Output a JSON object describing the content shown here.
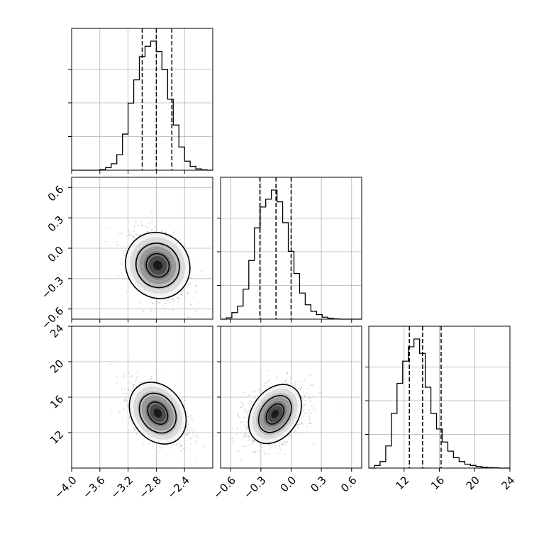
{
  "chart_data": {
    "type": "corner",
    "colors": {
      "line": "#000000",
      "grid": "#b0b0b0",
      "points": "#9a9a9a"
    },
    "parameters": [
      {
        "range": [
          -4.0,
          -2.0
        ],
        "ticks": [
          -4.0,
          -3.6,
          -3.2,
          -2.8,
          -2.4
        ],
        "tick_labels": [
          "−4.0",
          "−3.6",
          "−3.2",
          "−2.8",
          "−2.4"
        ],
        "quantiles": [
          -3.0,
          -2.8,
          -2.58
        ]
      },
      {
        "range": [
          -0.7,
          0.7
        ],
        "ticks": [
          -0.6,
          -0.3,
          0.0,
          0.3,
          0.6
        ],
        "tick_labels": [
          "−0.6",
          "−0.3",
          "0.0",
          "0.3",
          "0.6"
        ],
        "quantiles": [
          -0.31,
          -0.15,
          0.0
        ]
      },
      {
        "range": [
          8.0,
          24.0
        ],
        "ticks": [
          12,
          16,
          20,
          24
        ],
        "tick_labels": [
          "12",
          "16",
          "20",
          "24"
        ],
        "quantiles": [
          12.6,
          14.1,
          16.2
        ]
      }
    ],
    "histograms": [
      {
        "param": 0,
        "bin_start": -4.0,
        "bin_width": 0.08,
        "peak_label": "",
        "counts": [
          0,
          0,
          0,
          0,
          0,
          0.005,
          0.02,
          0.05,
          0.12,
          0.28,
          0.52,
          0.7,
          0.88,
          0.96,
          1.0,
          0.92,
          0.78,
          0.55,
          0.35,
          0.18,
          0.07,
          0.03,
          0.01,
          0.003,
          0
        ]
      },
      {
        "param": 1,
        "bin_start": -0.7,
        "bin_width": 0.056,
        "peak_label": "",
        "counts": [
          0,
          0.01,
          0.05,
          0.1,
          0.23,
          0.45,
          0.7,
          0.86,
          0.92,
          0.99,
          0.9,
          0.74,
          0.52,
          0.35,
          0.2,
          0.11,
          0.06,
          0.035,
          0.015,
          0.006,
          0.002,
          0,
          0,
          0,
          0
        ]
      },
      {
        "param": 2,
        "bin_start": 8.0,
        "bin_width": 0.64,
        "peak_label": "",
        "counts": [
          0,
          0.02,
          0.05,
          0.17,
          0.42,
          0.65,
          0.82,
          0.93,
          0.99,
          0.88,
          0.62,
          0.42,
          0.3,
          0.2,
          0.13,
          0.08,
          0.05,
          0.03,
          0.02,
          0.012,
          0.006,
          0.003,
          0.002,
          0,
          0
        ]
      }
    ],
    "scatter_panels": [
      {
        "x_param": 0,
        "y_param": 1,
        "center": [
          -2.78,
          -0.17
        ],
        "sd": [
          0.17,
          0.14
        ],
        "corr": -0.35,
        "contour_widths": [
          [
            0.17,
            0.11
          ],
          [
            0.32,
            0.21
          ],
          [
            0.48,
            0.31
          ]
        ]
      },
      {
        "x_param": 0,
        "y_param": 2,
        "center": [
          -2.78,
          14.2
        ],
        "sd": [
          0.17,
          1.4
        ],
        "corr": -0.45,
        "contour_widths": [
          [
            0.17,
            1.0
          ],
          [
            0.3,
            1.9
          ],
          [
            0.47,
            2.9
          ]
        ]
      },
      {
        "x_param": 1,
        "y_param": 2,
        "center": [
          -0.16,
          14.1
        ],
        "sd": [
          0.13,
          1.4
        ],
        "corr": 0.3,
        "contour_widths": [
          [
            0.11,
            0.85
          ],
          [
            0.2,
            1.6
          ],
          [
            0.32,
            2.6
          ]
        ]
      }
    ]
  }
}
